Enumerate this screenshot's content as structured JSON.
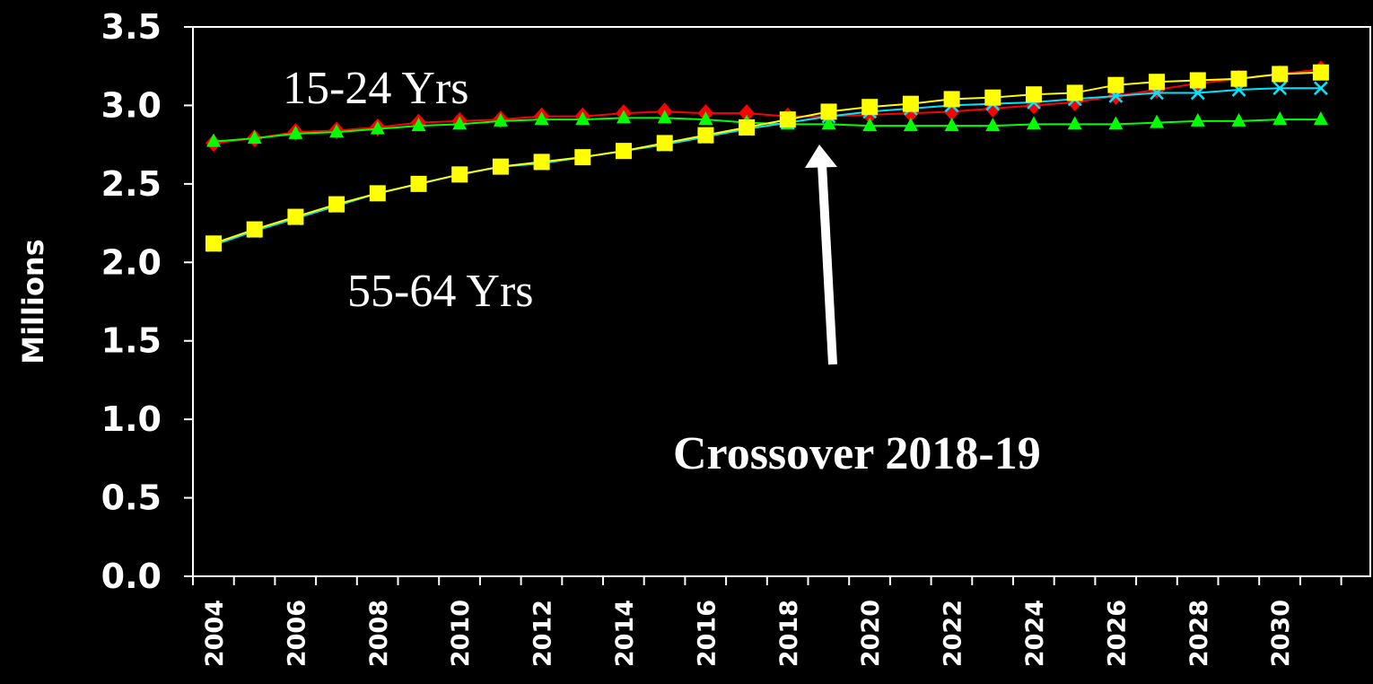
{
  "chart_data": {
    "type": "line",
    "title": "",
    "xlabel": "",
    "ylabel": "Millions",
    "ylim": [
      0,
      3.5
    ],
    "yticks": [
      "0.0",
      "0.5",
      "1.0",
      "1.5",
      "2.0",
      "2.5",
      "3.0",
      "3.5"
    ],
    "xticks": [
      "2004",
      "2006",
      "2008",
      "2010",
      "2012",
      "2014",
      "2016",
      "2018",
      "2020",
      "2022",
      "2024",
      "2026",
      "2028",
      "2030"
    ],
    "x": [
      2004,
      2005,
      2006,
      2007,
      2008,
      2009,
      2010,
      2011,
      2012,
      2013,
      2014,
      2015,
      2016,
      2017,
      2018,
      2019,
      2020,
      2021,
      2022,
      2023,
      2024,
      2025,
      2026,
      2027,
      2028,
      2029,
      2030,
      2031
    ],
    "grid": false,
    "series": [
      {
        "color": "#ff0000",
        "marker": "diamond",
        "values": [
          2.76,
          2.79,
          2.83,
          2.84,
          2.86,
          2.89,
          2.9,
          2.91,
          2.93,
          2.93,
          2.95,
          2.96,
          2.95,
          2.95,
          2.93,
          2.93,
          2.94,
          2.95,
          2.96,
          2.98,
          3.0,
          3.02,
          3.06,
          3.1,
          3.14,
          3.17,
          3.2,
          3.23
        ]
      },
      {
        "color": "#00ff00",
        "marker": "triangle",
        "values": [
          2.77,
          2.79,
          2.82,
          2.83,
          2.85,
          2.87,
          2.88,
          2.9,
          2.91,
          2.91,
          2.92,
          2.92,
          2.91,
          2.89,
          2.88,
          2.88,
          2.87,
          2.87,
          2.87,
          2.87,
          2.88,
          2.88,
          2.88,
          2.89,
          2.9,
          2.9,
          2.91,
          2.91
        ]
      },
      {
        "color": "#00e5ff",
        "marker": "x",
        "values": [
          2.11,
          2.2,
          2.28,
          2.36,
          2.44,
          2.5,
          2.56,
          2.61,
          2.63,
          2.67,
          2.71,
          2.75,
          2.8,
          2.85,
          2.89,
          2.93,
          2.96,
          2.98,
          3.0,
          3.01,
          3.02,
          3.04,
          3.06,
          3.08,
          3.08,
          3.1,
          3.11,
          3.11
        ]
      },
      {
        "color": "#ffff00",
        "marker": "square",
        "values": [
          2.12,
          2.21,
          2.29,
          2.37,
          2.44,
          2.5,
          2.56,
          2.61,
          2.64,
          2.67,
          2.71,
          2.76,
          2.81,
          2.86,
          2.91,
          2.96,
          2.99,
          3.01,
          3.04,
          3.05,
          3.07,
          3.08,
          3.13,
          3.15,
          3.16,
          3.17,
          3.2,
          3.21
        ]
      }
    ],
    "annotations": {
      "label_15_24": "15-24 Yrs",
      "label_55_64": "55-64 Yrs",
      "crossover": "Crossover 2018-19"
    },
    "axis_color": "#ffffff"
  }
}
